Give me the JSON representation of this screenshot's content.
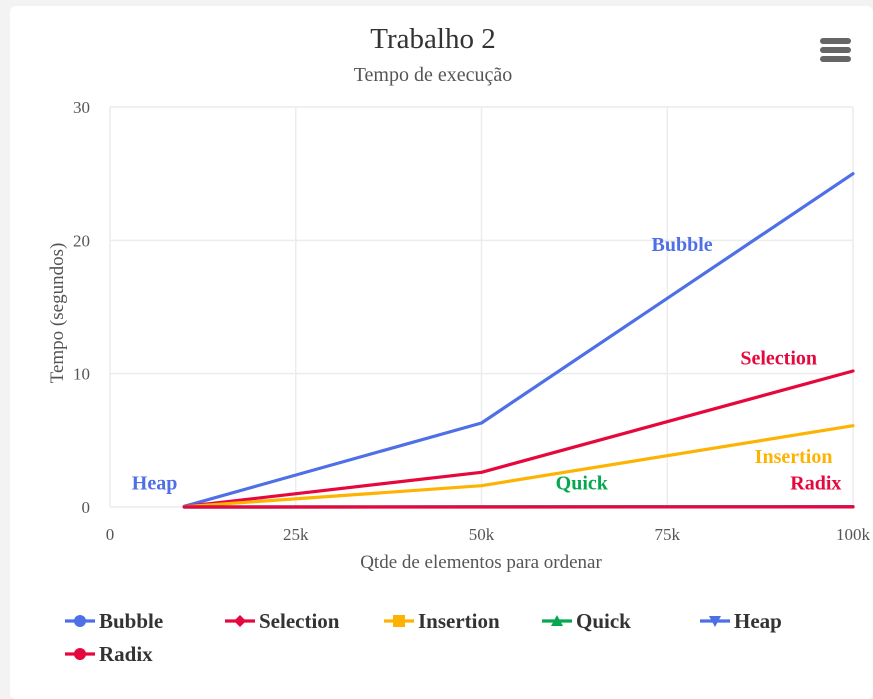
{
  "chart_data": {
    "type": "line",
    "title": "Trabalho 2",
    "subtitle": "Tempo de execução",
    "xlabel": "Qtde de elementos para ordenar",
    "ylabel": "Tempo (segundos)",
    "xlim": [
      0,
      100000
    ],
    "ylim": [
      0,
      30
    ],
    "x_ticks": [
      0,
      25000,
      50000,
      75000,
      100000
    ],
    "x_tick_labels": [
      "0",
      "25k",
      "50k",
      "75k",
      "100k"
    ],
    "y_ticks": [
      0,
      10,
      20,
      30
    ],
    "y_tick_labels": [
      "0",
      "10",
      "20",
      "30"
    ],
    "grid": true,
    "legend_position": "bottom",
    "x": [
      10000,
      50000,
      100000
    ],
    "series": [
      {
        "name": "Bubble",
        "color": "#4e6fe6",
        "marker": "circle",
        "values": [
          0.05,
          6.3,
          25.0
        ],
        "label_pos": [
          77000,
          19.2
        ]
      },
      {
        "name": "Selection",
        "color": "#e6073d",
        "marker": "diamond",
        "values": [
          0.03,
          2.6,
          10.2
        ],
        "label_pos": [
          90000,
          10.7
        ]
      },
      {
        "name": "Insertion",
        "color": "#fdb302",
        "marker": "square",
        "values": [
          0.02,
          1.6,
          6.1
        ],
        "label_pos": [
          92000,
          3.3
        ]
      },
      {
        "name": "Quick",
        "color": "#05a84f",
        "marker": "triangle",
        "values": [
          0.0,
          0.01,
          0.02
        ],
        "label_pos": [
          63500,
          1.3
        ]
      },
      {
        "name": "Heap",
        "color": "#4e6fe6",
        "marker": "triangle-down",
        "values": [
          0.0,
          0.01,
          0.03
        ],
        "label_pos": [
          6000,
          1.3
        ]
      },
      {
        "name": "Radix",
        "color": "#e6073d",
        "marker": "circle",
        "values": [
          0.0,
          0.0,
          0.01
        ],
        "label_pos": [
          95000,
          1.3
        ]
      }
    ]
  }
}
